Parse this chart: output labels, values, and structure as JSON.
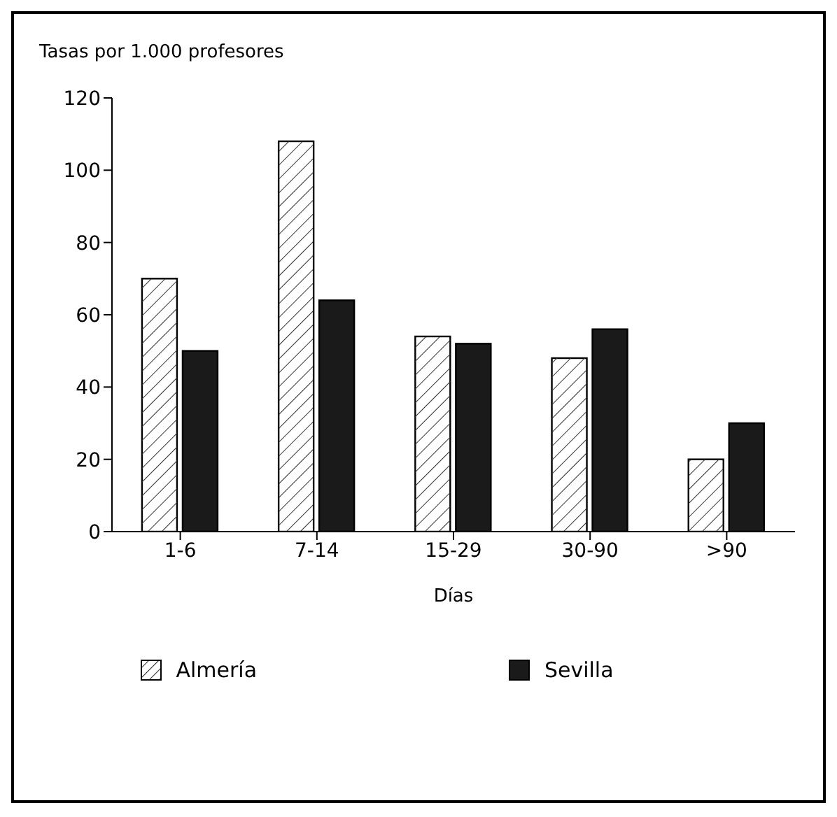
{
  "chart_data": {
    "type": "bar",
    "ylabel": "Tasas por 1.000 profesores",
    "xlabel": "Días",
    "categories": [
      "1-6",
      "7-14",
      "15-29",
      "30-90",
      ">90"
    ],
    "series": [
      {
        "name": "Almería",
        "color": "#ffffff",
        "values": [
          70,
          108,
          54,
          48,
          20
        ]
      },
      {
        "name": "Sevilla",
        "color": "#1a1a1a",
        "values": [
          50,
          64,
          52,
          56,
          30
        ]
      }
    ],
    "ylim": [
      0,
      120
    ],
    "yticks": [
      0,
      20,
      40,
      60,
      80,
      100,
      120
    ],
    "grid": false,
    "legend": "bottom"
  }
}
